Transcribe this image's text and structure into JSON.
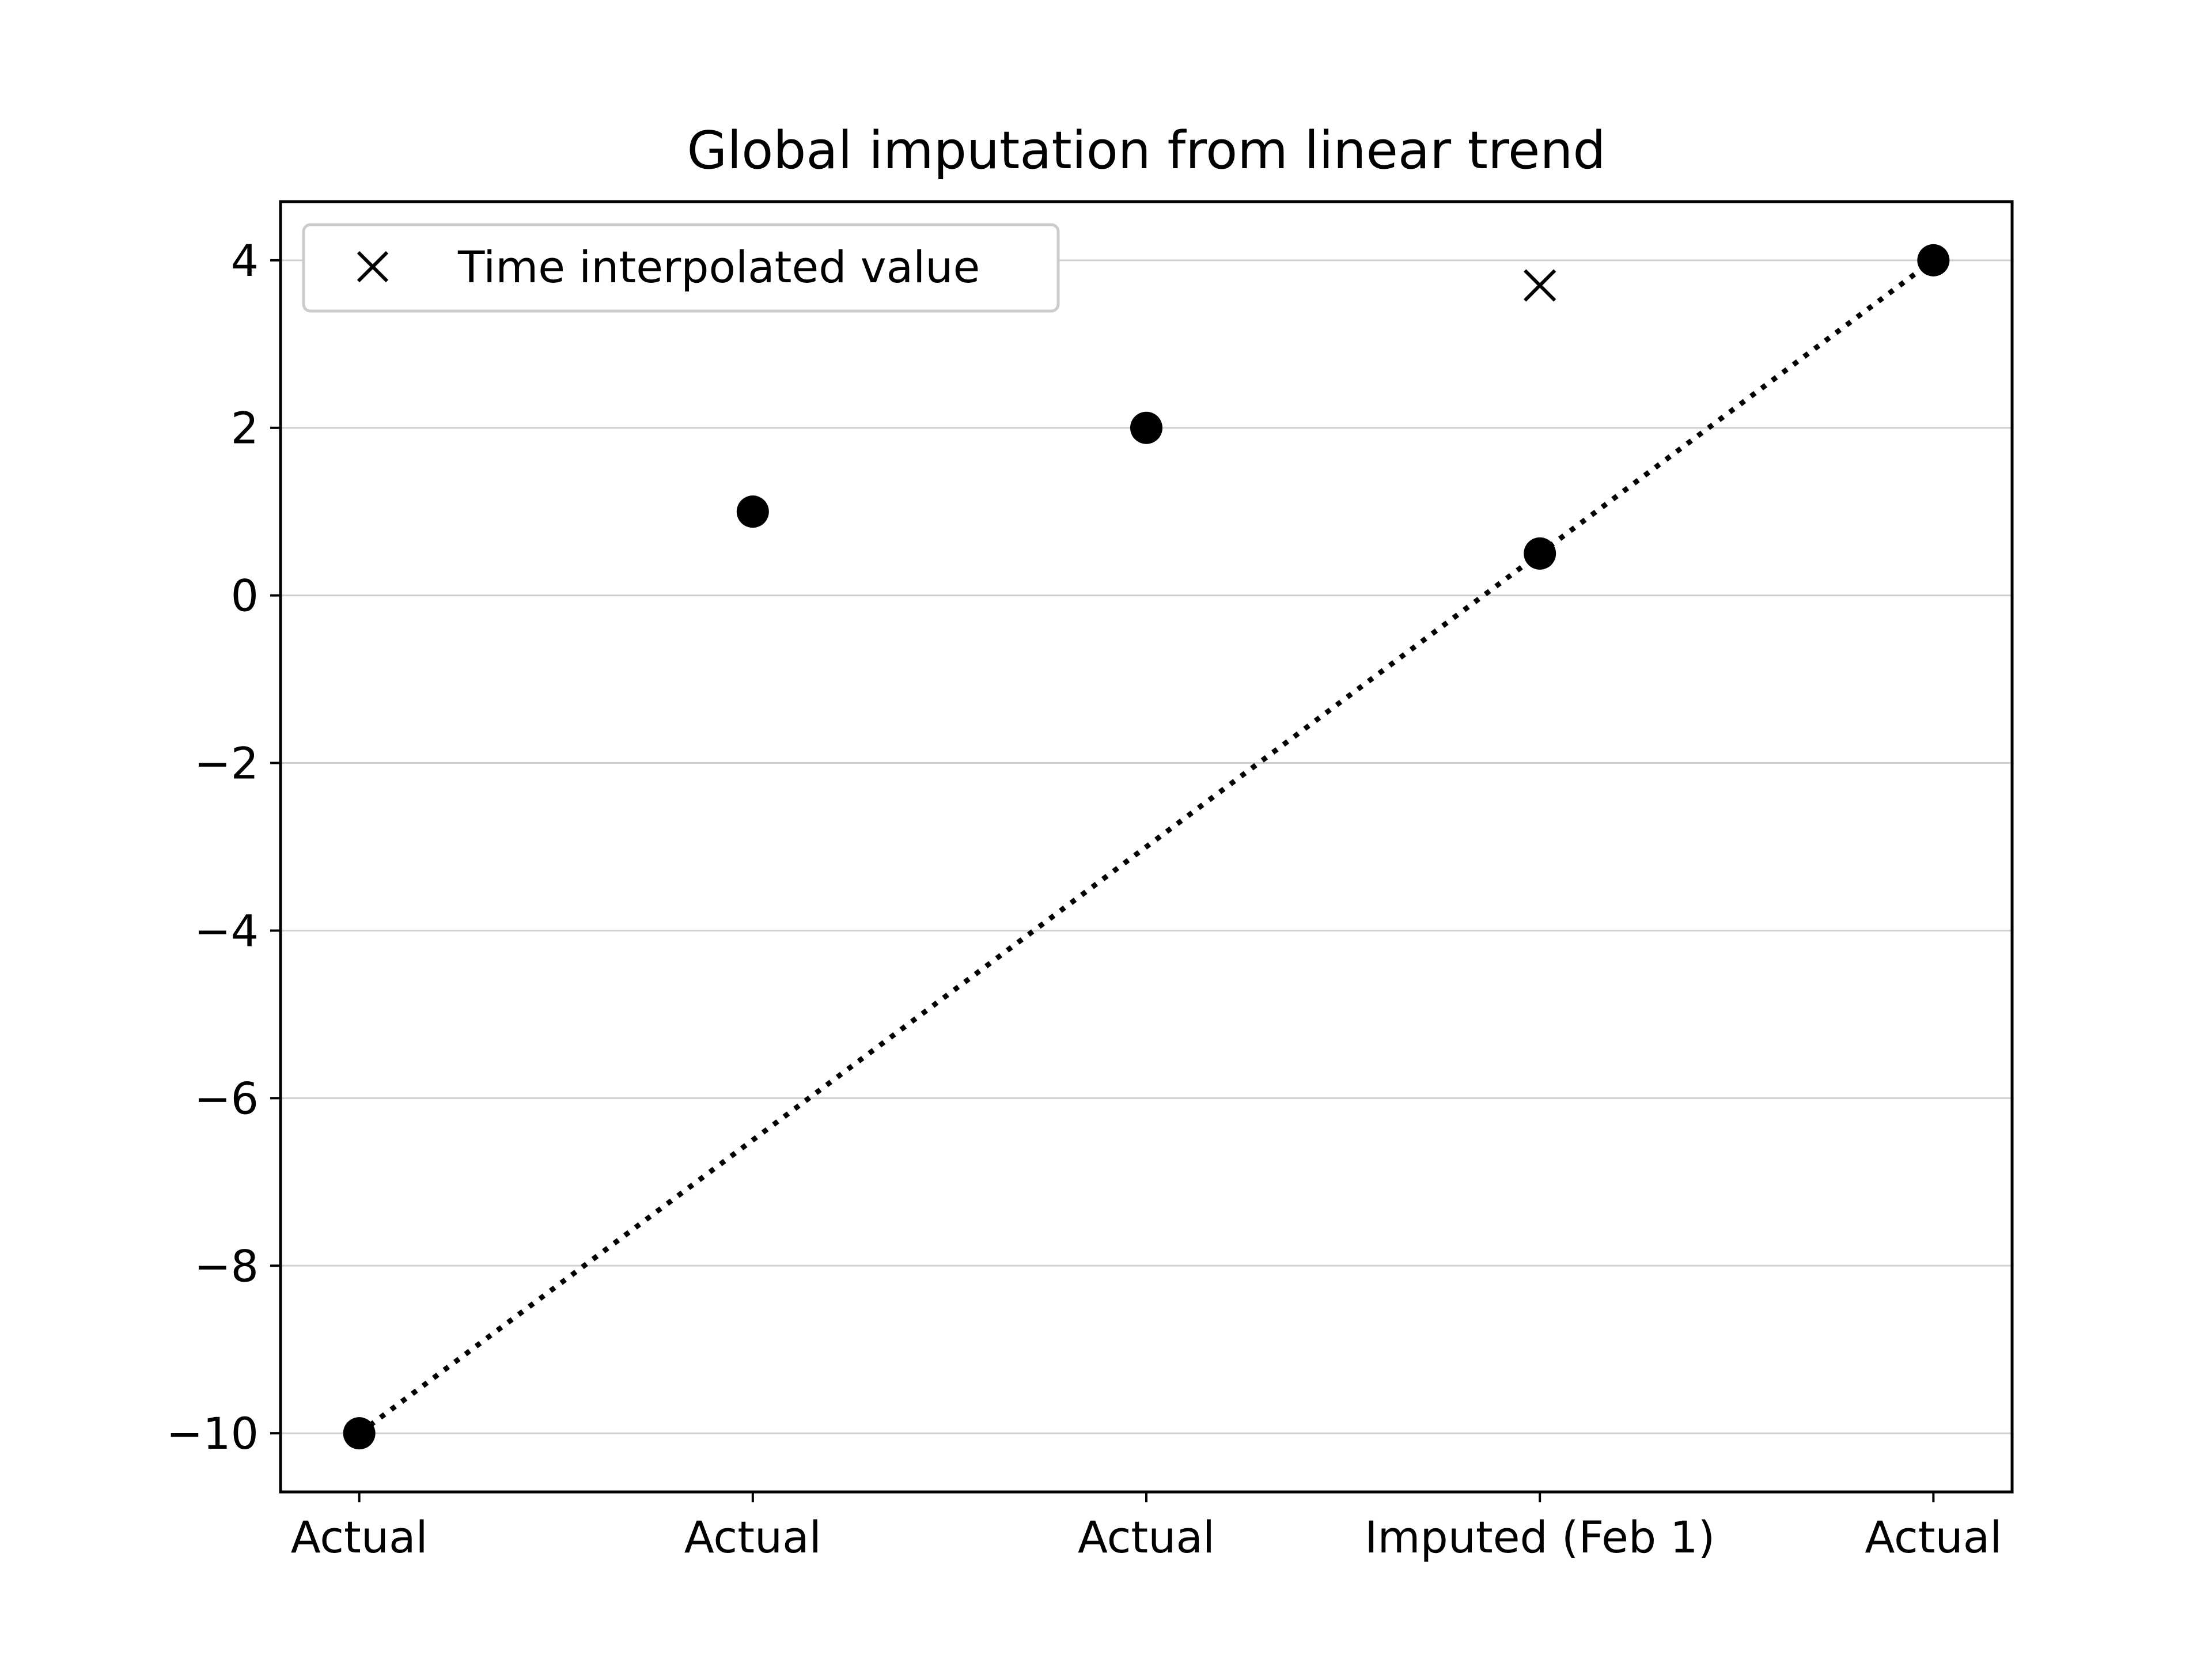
{
  "chart_data": {
    "type": "scatter",
    "title": "Global imputation from linear trend",
    "xlabel": "",
    "ylabel": "",
    "categories": [
      "Actual",
      "Actual",
      "Actual",
      "Imputed (Feb 1)",
      "Actual"
    ],
    "points": [
      {
        "x": 0,
        "y": -10
      },
      {
        "x": 1,
        "y": 1
      },
      {
        "x": 2,
        "y": 2
      },
      {
        "x": 3,
        "y": 0.5
      },
      {
        "x": 4,
        "y": 4
      }
    ],
    "trend_line": [
      {
        "x": 0,
        "y": -10
      },
      {
        "x": 4,
        "y": 4
      }
    ],
    "interpolated": [
      {
        "x": 3,
        "y": 3.7
      }
    ],
    "legend": [
      {
        "label": "Time interpolated value",
        "marker": "x-icon"
      }
    ],
    "legend_position": "top-left",
    "xlim": [
      -0.2,
      4.2
    ],
    "ylim": [
      -10.7,
      4.7
    ],
    "yticks": [
      4,
      2,
      0,
      -2,
      -4,
      -6,
      -8,
      -10
    ],
    "ytick_labels": [
      "4",
      "2",
      "0",
      "−2",
      "−4",
      "−6",
      "−8",
      "−10"
    ],
    "grid": "y",
    "colors": {
      "marker": "#000000",
      "grid": "#d0d0d0",
      "axis": "#000000"
    }
  }
}
